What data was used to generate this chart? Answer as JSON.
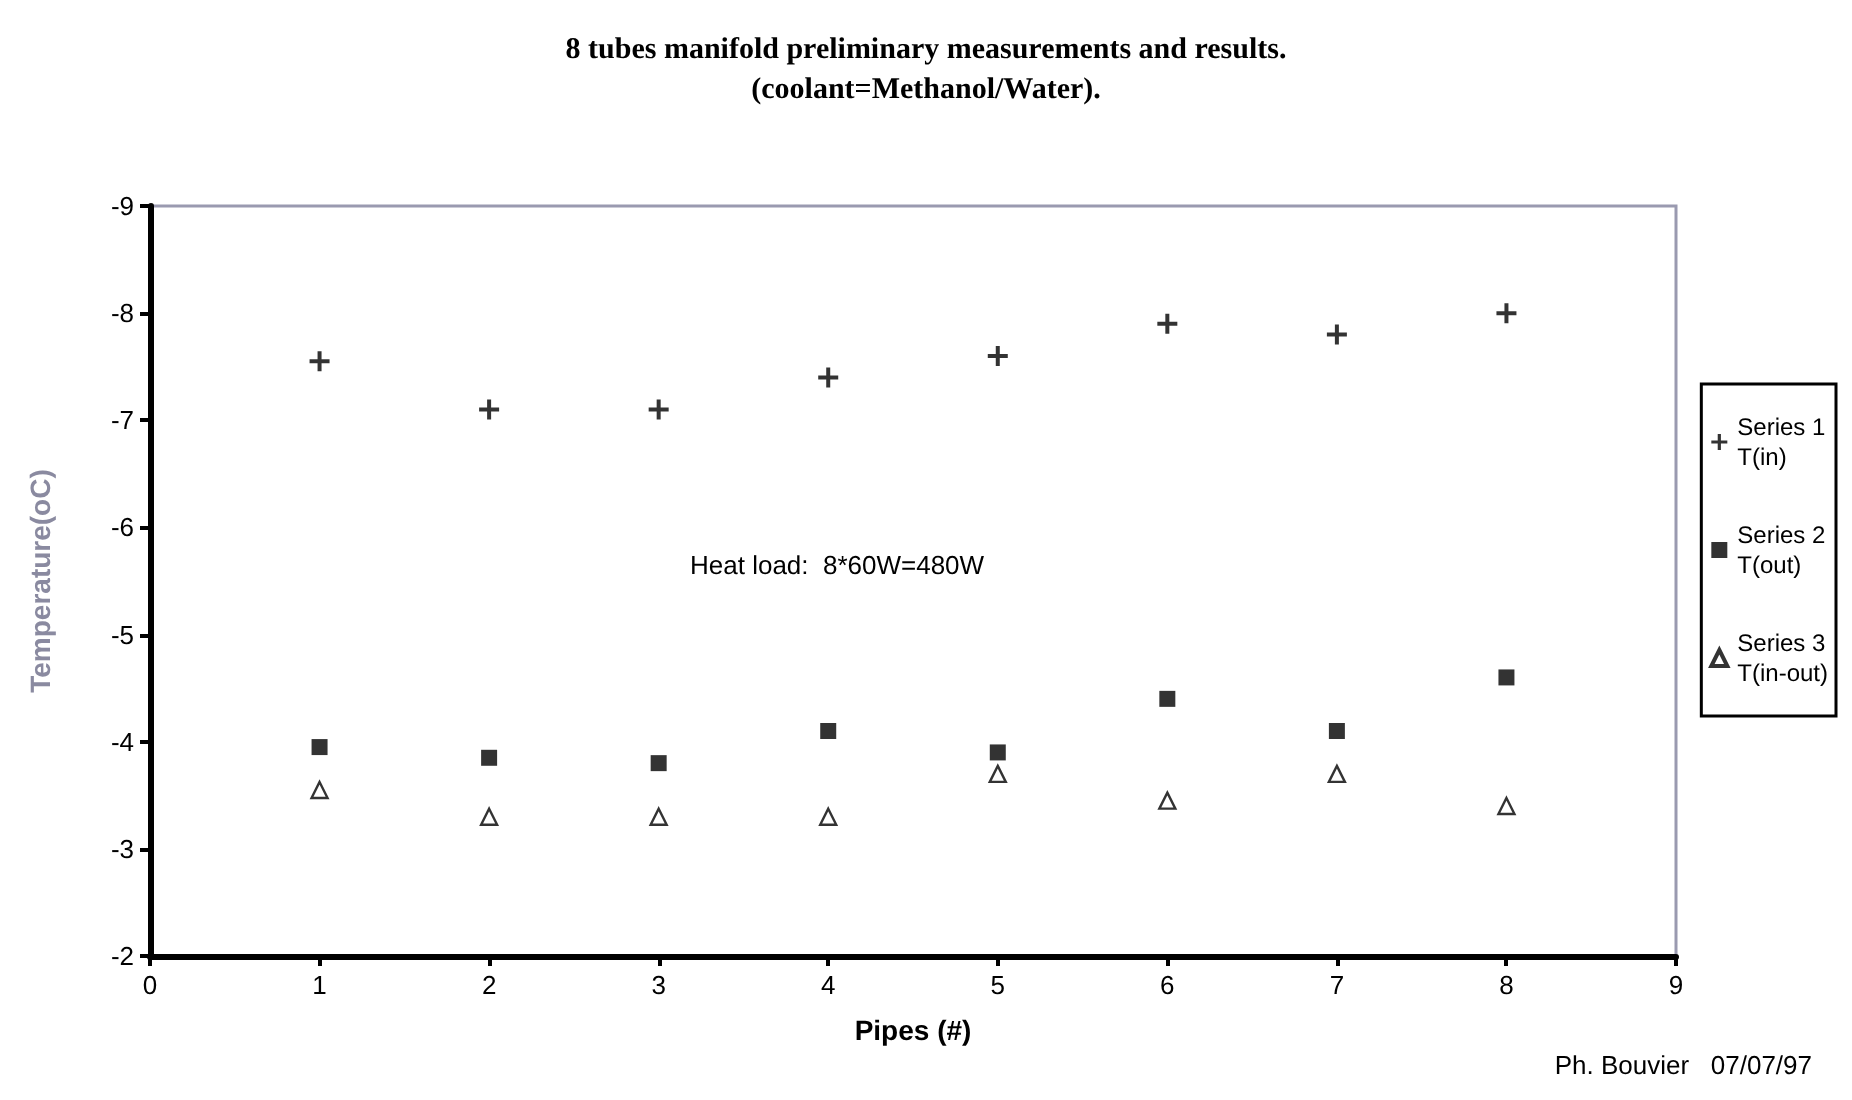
{
  "chart_data": {
    "type": "scatter",
    "title": "8 tubes manifold preliminary measurements and results.\n(coolant=Methanol/Water).",
    "xlabel": "Pipes (#)",
    "ylabel": "Temperature(oC)",
    "x": [
      1,
      2,
      3,
      4,
      5,
      6,
      7,
      8
    ],
    "series": [
      {
        "name": "Series 1\nT(in)",
        "color": "#000000",
        "marker": "cross",
        "values": [
          -7.55,
          -7.1,
          -7.1,
          -7.4,
          -7.6,
          -7.9,
          -7.8,
          -8.0
        ]
      },
      {
        "name": "Series 2\nT(out)",
        "color": "#000000",
        "marker": "square",
        "values": [
          -3.95,
          -3.85,
          -3.8,
          -4.1,
          -3.9,
          -4.4,
          -4.1,
          -4.6
        ]
      },
      {
        "name": "Series 3\nT(in-out)",
        "color": "#000000",
        "marker": "triangle",
        "values": [
          -3.55,
          -3.3,
          -3.3,
          -3.3,
          -3.7,
          -3.45,
          -3.7,
          -3.4
        ]
      }
    ],
    "xlim": [
      0,
      9
    ],
    "xticks": [
      0,
      1,
      2,
      3,
      4,
      5,
      6,
      7,
      8,
      9
    ],
    "ylim": [
      -2,
      -9
    ],
    "yticks": [
      -9,
      -8,
      -7,
      -6,
      -5,
      -4,
      -3,
      -2
    ],
    "grid": false,
    "legend": "right",
    "annotations": [
      "Heat load:  8*60W=480W",
      "Ph. Bouvier   07/07/97"
    ]
  }
}
